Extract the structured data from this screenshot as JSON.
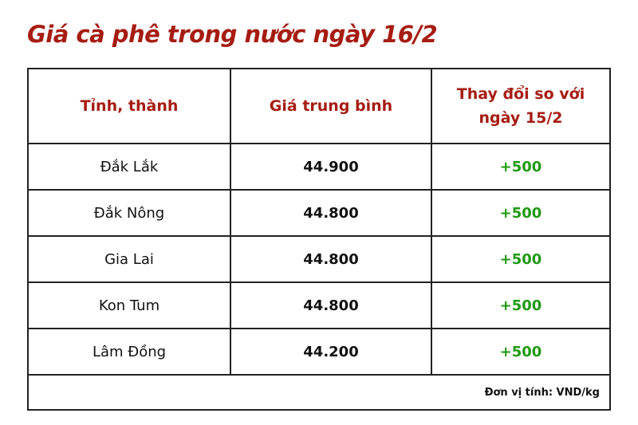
{
  "title": "Giá cà phê trong nước ngày 16/2",
  "headers": [
    "Tỉnh, thành",
    "Giá trung bình",
    "Thay đổi so với ngày 15/2"
  ],
  "rows": [
    {
      "province": "Đắk Lắk",
      "price": "44.900",
      "change": "+500"
    },
    {
      "province": "Đắk Nông",
      "price": "44.800",
      "change": "+500"
    },
    {
      "province": "Gia Lai",
      "price": "44.800",
      "change": "+500"
    },
    {
      "province": "Kon Tum",
      "price": "44.800",
      "change": "+500"
    },
    {
      "province": "Lâm Đồng",
      "price": "44.200",
      "change": "+500"
    }
  ],
  "unit_note": "Đơn vị tính: VND/kg",
  "colors": {
    "title": "#a61c12",
    "header": "#a61c12",
    "positive_change": "#1f9a12"
  }
}
